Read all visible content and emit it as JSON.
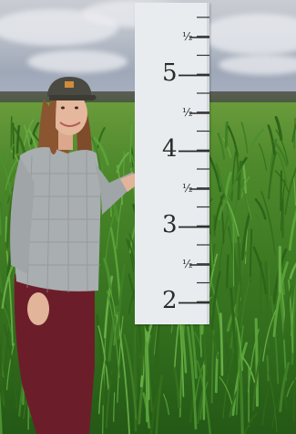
{
  "measuring_stick": {
    "labels": [
      {
        "text": "½",
        "kind": "half"
      },
      {
        "text": "5",
        "kind": "whole"
      },
      {
        "text": "½",
        "kind": "half"
      },
      {
        "text": "4",
        "kind": "whole"
      },
      {
        "text": "½",
        "kind": "half"
      },
      {
        "text": "3",
        "kind": "whole"
      },
      {
        "text": "½",
        "kind": "half"
      },
      {
        "text": "2",
        "kind": "whole"
      }
    ]
  },
  "colors": {
    "sky": "#b9bfc9",
    "grass": "#3e7b23",
    "stick": "#e9ecef",
    "cap": "#4a4a42",
    "shirt": "#a9aeb0",
    "pants": "#6b1e2a",
    "hair": "#8a5530"
  }
}
